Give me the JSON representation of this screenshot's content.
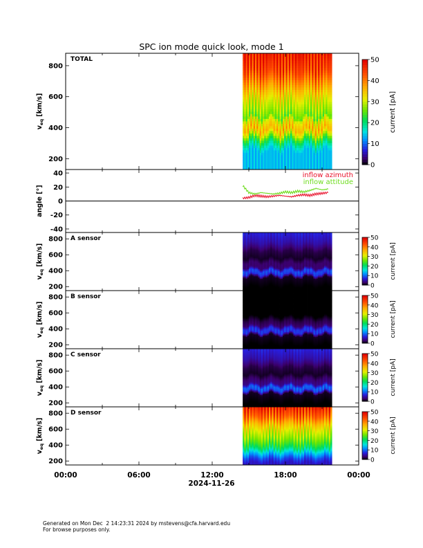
{
  "title": "SPC ion mode quick look, mode 1",
  "date_label": "2024-11-26",
  "time_ticks": [
    "00:00",
    "06:00",
    "12:00",
    "18:00",
    "00:00"
  ],
  "footer": {
    "line1": "Generated on Mon Dec  2 14:23:31 2024 by mstevens@cfa.harvard.edu",
    "line2": "For browse purposes only."
  },
  "colorbar_label": "current [pA]",
  "colors": {
    "inflow_azimuth": "#e8102a",
    "inflow_attitude": "#6edc1e"
  },
  "chart_data": [
    {
      "type": "heatmap",
      "name": "TOTAL",
      "panel_label": "TOTAL",
      "ylabel": "v_eq [km/s]",
      "ylabel_main": "v",
      "ylabel_sub": "eq",
      "ylabel_unit": "[km/s]",
      "ylim": [
        130,
        880
      ],
      "yticks": [
        200,
        400,
        600,
        800
      ],
      "xlim_hours": [
        0,
        24
      ],
      "data_window_hours": [
        14.5,
        21.8
      ],
      "colorbar_ticks": [
        0,
        10,
        20,
        30,
        40,
        50
      ],
      "clim": [
        0,
        50
      ],
      "profile": [
        {
          "v": 160,
          "c": 14
        },
        {
          "v": 250,
          "c": 14
        },
        {
          "v": 290,
          "c": 18
        },
        {
          "v": 330,
          "c": 24
        },
        {
          "v": 360,
          "c": 31
        },
        {
          "v": 390,
          "c": 36
        },
        {
          "v": 430,
          "c": 33
        },
        {
          "v": 455,
          "c": 30
        },
        {
          "v": 470,
          "c": 25
        },
        {
          "v": 495,
          "c": 27
        },
        {
          "v": 560,
          "c": 30
        },
        {
          "v": 650,
          "c": 36
        },
        {
          "v": 760,
          "c": 44
        },
        {
          "v": 880,
          "c": 48
        }
      ]
    },
    {
      "type": "line",
      "name": "angle",
      "ylabel": "angle [°]",
      "ylim": [
        -45,
        45
      ],
      "yticks": [
        -40,
        -20,
        0,
        20,
        40
      ],
      "series": [
        {
          "name": "inflow azimuth",
          "x": [
            14.5,
            15.0,
            15.5,
            16.0,
            16.5,
            17.0,
            17.5,
            18.0,
            18.5,
            19.0,
            19.5,
            20.0,
            20.5,
            21.0,
            21.5
          ],
          "values": [
            4,
            5,
            8,
            7,
            6,
            7,
            8,
            7,
            6,
            8,
            9,
            8,
            10,
            11,
            12
          ]
        },
        {
          "name": "inflow attitude",
          "x": [
            14.5,
            15.0,
            15.5,
            16.0,
            16.5,
            17.0,
            17.5,
            18.0,
            18.5,
            19.0,
            19.5,
            20.0,
            20.5,
            21.0,
            21.5
          ],
          "values": [
            22,
            12,
            10,
            12,
            11,
            10,
            11,
            13,
            12,
            14,
            13,
            15,
            18,
            16,
            17
          ]
        }
      ]
    },
    {
      "type": "heatmap",
      "name": "A sensor",
      "panel_label": "A sensor",
      "ylabel": "v_eq [km/s]",
      "ylabel_main": "v",
      "ylabel_sub": "eq",
      "ylabel_unit": "[km/s]",
      "ylim": [
        150,
        880
      ],
      "yticks": [
        200,
        400,
        600,
        800
      ],
      "xlim_hours": [
        0,
        24
      ],
      "data_window_hours": [
        14.5,
        21.8
      ],
      "colorbar_ticks": [
        0,
        10,
        20,
        30,
        40,
        50
      ],
      "clim": [
        0,
        50
      ],
      "profile": [
        {
          "v": 200,
          "c": 0
        },
        {
          "v": 320,
          "c": 1
        },
        {
          "v": 360,
          "c": 8
        },
        {
          "v": 400,
          "c": 9
        },
        {
          "v": 440,
          "c": 3
        },
        {
          "v": 500,
          "c": 3
        },
        {
          "v": 560,
          "c": 1
        },
        {
          "v": 650,
          "c": 2
        },
        {
          "v": 750,
          "c": 5
        },
        {
          "v": 880,
          "c": 7
        }
      ]
    },
    {
      "type": "heatmap",
      "name": "B sensor",
      "panel_label": "B sensor",
      "ylabel": "v_eq [km/s]",
      "ylabel_main": "v",
      "ylabel_sub": "eq",
      "ylabel_unit": "[km/s]",
      "ylim": [
        150,
        880
      ],
      "yticks": [
        200,
        400,
        600,
        800
      ],
      "xlim_hours": [
        0,
        24
      ],
      "data_window_hours": [
        14.5,
        21.8
      ],
      "colorbar_ticks": [
        0,
        10,
        20,
        30,
        40,
        50
      ],
      "clim": [
        0,
        50
      ],
      "profile": [
        {
          "v": 200,
          "c": 0
        },
        {
          "v": 320,
          "c": 1
        },
        {
          "v": 360,
          "c": 8
        },
        {
          "v": 400,
          "c": 8
        },
        {
          "v": 440,
          "c": 3
        },
        {
          "v": 500,
          "c": 2
        },
        {
          "v": 560,
          "c": 0
        },
        {
          "v": 880,
          "c": 0
        }
      ]
    },
    {
      "type": "heatmap",
      "name": "C sensor",
      "panel_label": "C sensor",
      "ylabel": "v_eq [km/s]",
      "ylabel_main": "v",
      "ylabel_sub": "eq",
      "ylabel_unit": "[km/s]",
      "ylim": [
        150,
        880
      ],
      "yticks": [
        200,
        400,
        600,
        800
      ],
      "xlim_hours": [
        0,
        24
      ],
      "data_window_hours": [
        14.5,
        21.8
      ],
      "colorbar_ticks": [
        0,
        10,
        20,
        30,
        40,
        50
      ],
      "clim": [
        0,
        50
      ],
      "profile": [
        {
          "v": 200,
          "c": 0
        },
        {
          "v": 320,
          "c": 1
        },
        {
          "v": 360,
          "c": 9
        },
        {
          "v": 400,
          "c": 10
        },
        {
          "v": 440,
          "c": 4
        },
        {
          "v": 500,
          "c": 3
        },
        {
          "v": 560,
          "c": 1
        },
        {
          "v": 650,
          "c": 2
        },
        {
          "v": 750,
          "c": 5
        },
        {
          "v": 880,
          "c": 7
        }
      ]
    },
    {
      "type": "heatmap",
      "name": "D sensor",
      "panel_label": "D sensor",
      "ylabel": "v_eq [km/s]",
      "ylabel_main": "v",
      "ylabel_sub": "eq",
      "ylabel_unit": "[km/s]",
      "ylim": [
        150,
        880
      ],
      "yticks": [
        200,
        400,
        600,
        800
      ],
      "xlim_hours": [
        0,
        24
      ],
      "data_window_hours": [
        14.5,
        21.8
      ],
      "colorbar_ticks": [
        0,
        10,
        20,
        30,
        40,
        50
      ],
      "clim": [
        0,
        50
      ],
      "profile": [
        {
          "v": 180,
          "c": 6
        },
        {
          "v": 240,
          "c": 9
        },
        {
          "v": 300,
          "c": 14
        },
        {
          "v": 360,
          "c": 20
        },
        {
          "v": 420,
          "c": 24
        },
        {
          "v": 480,
          "c": 27
        },
        {
          "v": 560,
          "c": 30
        },
        {
          "v": 660,
          "c": 35
        },
        {
          "v": 760,
          "c": 42
        },
        {
          "v": 880,
          "c": 47
        }
      ]
    }
  ]
}
